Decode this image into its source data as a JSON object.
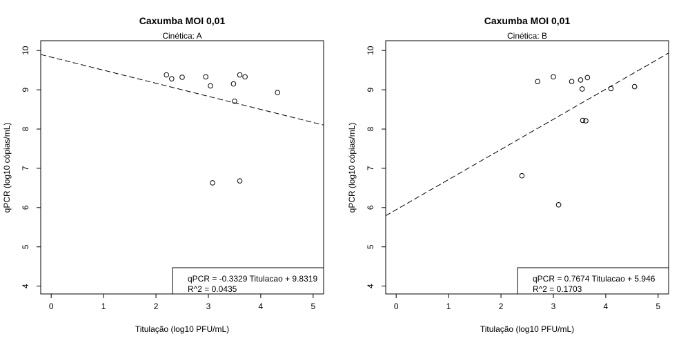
{
  "chart_data": [
    {
      "type": "scatter",
      "title": "Caxumba MOI 0,01",
      "subtitle": "Cinética: A",
      "xlabel": "Titulação (log10 PFU/mL)",
      "ylabel": "qPCR (log10 cópias/mL)",
      "xlim": [
        -0.2,
        5.2
      ],
      "ylim": [
        3.8,
        10.25
      ],
      "xticks": [
        "0",
        "1",
        "2",
        "3",
        "4",
        "5"
      ],
      "yticks": [
        "4",
        "5",
        "6",
        "7",
        "8",
        "9",
        "10"
      ],
      "points": [
        {
          "x": 2.2,
          "y": 9.38
        },
        {
          "x": 2.3,
          "y": 9.28
        },
        {
          "x": 2.5,
          "y": 9.32
        },
        {
          "x": 2.95,
          "y": 9.33
        },
        {
          "x": 3.04,
          "y": 9.1
        },
        {
          "x": 3.08,
          "y": 6.63
        },
        {
          "x": 3.48,
          "y": 9.15
        },
        {
          "x": 3.5,
          "y": 8.71
        },
        {
          "x": 3.6,
          "y": 9.38
        },
        {
          "x": 3.6,
          "y": 6.68
        },
        {
          "x": 3.7,
          "y": 9.33
        },
        {
          "x": 4.32,
          "y": 8.93
        }
      ],
      "fit": {
        "slope": -0.3329,
        "intercept": 9.8319
      },
      "legend": [
        "qPCR = -0.3329 Titulacao + 9.8319",
        "R^2 = 0.0435"
      ],
      "legend_position": "bottom-right"
    },
    {
      "type": "scatter",
      "title": "Caxumba MOI 0,01",
      "subtitle": "Cinética: B",
      "xlabel": "Titulação (log10 PFU/mL)",
      "ylabel": "qPCR (log10 cópias/mL)",
      "xlim": [
        -0.2,
        5.2
      ],
      "ylim": [
        3.8,
        10.25
      ],
      "xticks": [
        "0",
        "1",
        "2",
        "3",
        "4",
        "5"
      ],
      "yticks": [
        "4",
        "5",
        "6",
        "7",
        "8",
        "9",
        "10"
      ],
      "points": [
        {
          "x": 2.4,
          "y": 6.81
        },
        {
          "x": 2.7,
          "y": 9.21
        },
        {
          "x": 3.0,
          "y": 9.33
        },
        {
          "x": 3.1,
          "y": 6.07
        },
        {
          "x": 3.35,
          "y": 9.21
        },
        {
          "x": 3.52,
          "y": 9.25
        },
        {
          "x": 3.55,
          "y": 9.02
        },
        {
          "x": 3.56,
          "y": 8.22
        },
        {
          "x": 3.62,
          "y": 8.21
        },
        {
          "x": 3.65,
          "y": 9.31
        },
        {
          "x": 4.1,
          "y": 9.03
        },
        {
          "x": 4.55,
          "y": 9.08
        }
      ],
      "fit": {
        "slope": 0.7674,
        "intercept": 5.946
      },
      "legend": [
        "qPCR = 0.7674 Titulacao + 5.946",
        "R^2 = 0.1703"
      ],
      "legend_position": "bottom-right"
    }
  ]
}
